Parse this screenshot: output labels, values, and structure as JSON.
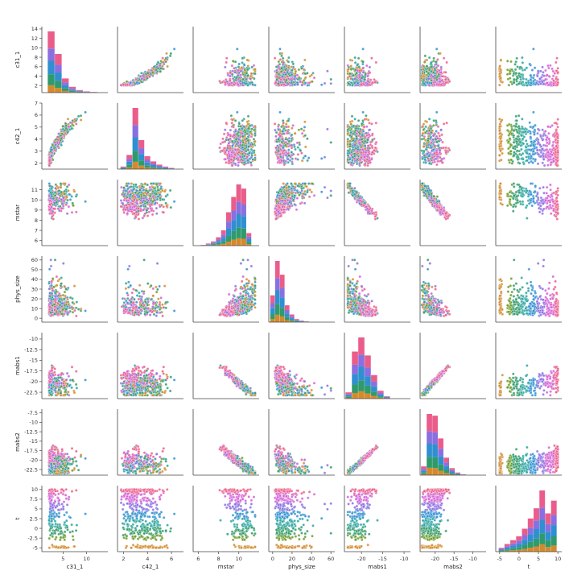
{
  "chart_data": {
    "type": "pairplot",
    "title": "",
    "variables": [
      "c31_1",
      "c42_1",
      "mstar",
      "phys_size",
      "mabs1",
      "mabs2",
      "t"
    ],
    "hue": {
      "name": "t",
      "palette": [
        "#d48a2c",
        "#6a9a27",
        "#2f9a6b",
        "#27a3a0",
        "#2f8fd0",
        "#8a6fe0",
        "#d25fd6",
        "#ea5d8b"
      ]
    },
    "diagonal": "histogram",
    "offdiagonal": "scatter",
    "ranges": {
      "c31_1": [
        0.5,
        14.5
      ],
      "c42_1": [
        1.5,
        7.0
      ],
      "mstar": [
        5.5,
        12.0
      ],
      "phys_size": [
        -4,
        64
      ],
      "mabs1": [
        -24.0,
        -8.5
      ],
      "mabs2": [
        -24.0,
        -6.5
      ],
      "t": [
        -6.0,
        11.0
      ]
    },
    "ticks": {
      "c31_1": [
        2,
        4,
        6,
        8,
        10,
        12,
        14
      ],
      "c42_1": [
        2,
        3,
        4,
        5,
        6,
        7
      ],
      "mstar": [
        6,
        7,
        8,
        9,
        10,
        11
      ],
      "phys_size": [
        0,
        10,
        20,
        30,
        40,
        50,
        60
      ],
      "mabs1": [
        -22.5,
        -20.0,
        -17.5,
        -15.0,
        -12.5,
        -10.0
      ],
      "mabs2": [
        -22.5,
        -20.0,
        -17.5,
        -15.0,
        -12.5,
        -10.0,
        -7.5
      ],
      "t": [
        -5.0,
        -2.5,
        0.0,
        2.5,
        5.0,
        7.5,
        10.0
      ]
    },
    "bottom_ticks": {
      "c31_1": [
        5,
        10
      ],
      "c42_1": [
        2,
        4,
        6
      ],
      "mstar": [
        6,
        8,
        10
      ],
      "phys_size": [
        0,
        20,
        40,
        60
      ],
      "mabs1": [
        -20,
        -15,
        -10
      ],
      "mabs2": [
        -20,
        -15,
        -10
      ],
      "t": [
        -5,
        0,
        5,
        10
      ]
    },
    "diagonal_hist": {
      "c31_1": {
        "bins": [
          2.5,
          4,
          5.5,
          7,
          8.5,
          10,
          11.5
        ],
        "counts": [
          95,
          60,
          22,
          9,
          4,
          2,
          1
        ]
      },
      "c42_1": {
        "bins": [
          2,
          2.5,
          3,
          3.5,
          4,
          4.5,
          5,
          5.5,
          6
        ],
        "counts": [
          4,
          22,
          95,
          45,
          20,
          12,
          7,
          4,
          2
        ]
      },
      "mstar": {
        "bins": [
          6.5,
          7,
          7.5,
          8,
          8.5,
          9,
          9.5,
          10,
          10.5,
          11
        ],
        "counts": [
          1,
          3,
          6,
          12,
          22,
          48,
          70,
          88,
          82,
          18
        ]
      },
      "phys_size": {
        "bins": [
          0,
          5,
          10,
          15,
          20,
          25,
          30,
          35
        ],
        "counts": [
          35,
          80,
          62,
          22,
          10,
          4,
          2,
          1
        ]
      },
      "mabs1": {
        "bins": [
          -23,
          -21.5,
          -20,
          -18.5,
          -17,
          -15.5,
          -14
        ],
        "counts": [
          8,
          60,
          78,
          55,
          30,
          10,
          3
        ]
      },
      "mabs2": {
        "bins": [
          -23,
          -21.5,
          -20,
          -18.5,
          -17,
          -15.5,
          -14,
          -12.5
        ],
        "counts": [
          10,
          70,
          68,
          42,
          20,
          8,
          3,
          1
        ]
      },
      "t": {
        "bins": [
          -4.5,
          -3,
          -1.5,
          0,
          1.5,
          3,
          4.5,
          6,
          7.5,
          9
        ],
        "counts": [
          3,
          6,
          9,
          12,
          18,
          26,
          34,
          48,
          30,
          40
        ]
      }
    },
    "scatter_note": "about 500 galaxies per panel; strong relations: c42_1 rises with c31_1, mabs1 and mabs2 fall linearly with mstar, mabs1 ~ mabs2 one-to-one",
    "legend": "none"
  }
}
